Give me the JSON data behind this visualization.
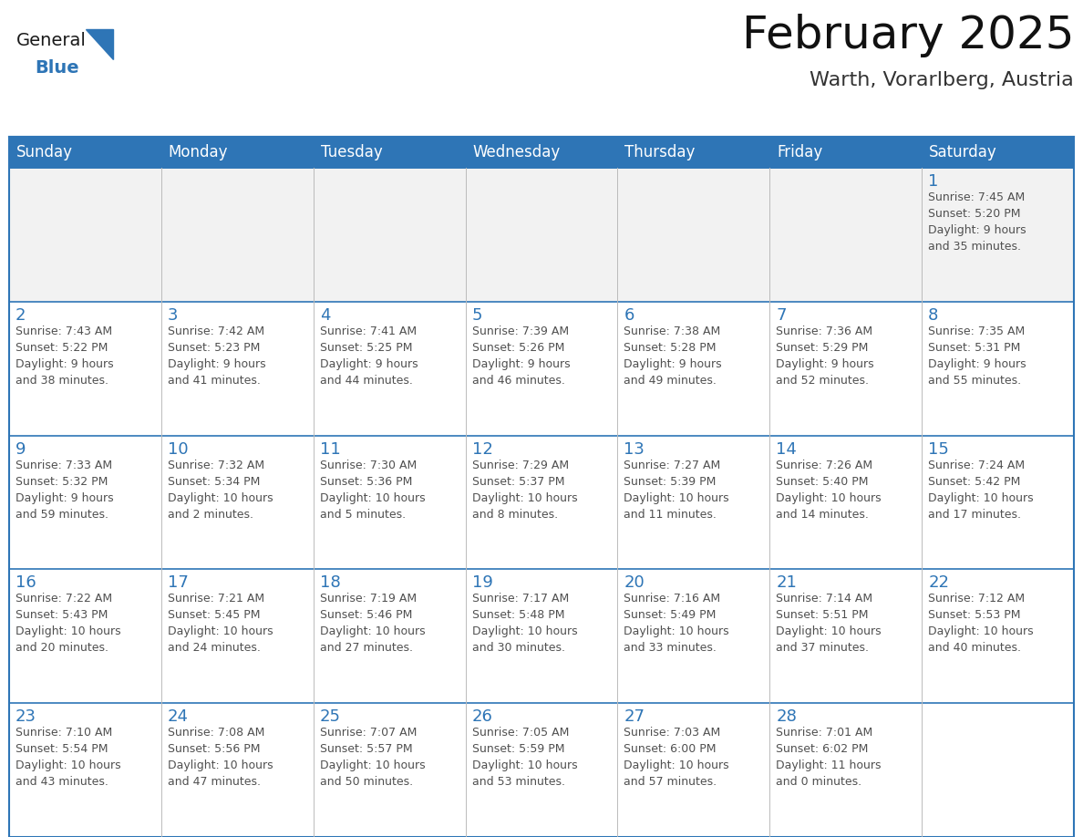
{
  "title": "February 2025",
  "subtitle": "Warth, Vorarlberg, Austria",
  "header_color": "#2E75B6",
  "header_text_color": "#FFFFFF",
  "cell_bg_white": "#FFFFFF",
  "cell_bg_gray": "#F2F2F2",
  "border_color": "#2E75B6",
  "day_number_color": "#2E75B6",
  "text_color": "#505050",
  "grid_line_color": "#BBBBBB",
  "days_of_week": [
    "Sunday",
    "Monday",
    "Tuesday",
    "Wednesday",
    "Thursday",
    "Friday",
    "Saturday"
  ],
  "weeks": [
    [
      {
        "day": null,
        "info": null
      },
      {
        "day": null,
        "info": null
      },
      {
        "day": null,
        "info": null
      },
      {
        "day": null,
        "info": null
      },
      {
        "day": null,
        "info": null
      },
      {
        "day": null,
        "info": null
      },
      {
        "day": "1",
        "info": "Sunrise: 7:45 AM\nSunset: 5:20 PM\nDaylight: 9 hours\nand 35 minutes."
      }
    ],
    [
      {
        "day": "2",
        "info": "Sunrise: 7:43 AM\nSunset: 5:22 PM\nDaylight: 9 hours\nand 38 minutes."
      },
      {
        "day": "3",
        "info": "Sunrise: 7:42 AM\nSunset: 5:23 PM\nDaylight: 9 hours\nand 41 minutes."
      },
      {
        "day": "4",
        "info": "Sunrise: 7:41 AM\nSunset: 5:25 PM\nDaylight: 9 hours\nand 44 minutes."
      },
      {
        "day": "5",
        "info": "Sunrise: 7:39 AM\nSunset: 5:26 PM\nDaylight: 9 hours\nand 46 minutes."
      },
      {
        "day": "6",
        "info": "Sunrise: 7:38 AM\nSunset: 5:28 PM\nDaylight: 9 hours\nand 49 minutes."
      },
      {
        "day": "7",
        "info": "Sunrise: 7:36 AM\nSunset: 5:29 PM\nDaylight: 9 hours\nand 52 minutes."
      },
      {
        "day": "8",
        "info": "Sunrise: 7:35 AM\nSunset: 5:31 PM\nDaylight: 9 hours\nand 55 minutes."
      }
    ],
    [
      {
        "day": "9",
        "info": "Sunrise: 7:33 AM\nSunset: 5:32 PM\nDaylight: 9 hours\nand 59 minutes."
      },
      {
        "day": "10",
        "info": "Sunrise: 7:32 AM\nSunset: 5:34 PM\nDaylight: 10 hours\nand 2 minutes."
      },
      {
        "day": "11",
        "info": "Sunrise: 7:30 AM\nSunset: 5:36 PM\nDaylight: 10 hours\nand 5 minutes."
      },
      {
        "day": "12",
        "info": "Sunrise: 7:29 AM\nSunset: 5:37 PM\nDaylight: 10 hours\nand 8 minutes."
      },
      {
        "day": "13",
        "info": "Sunrise: 7:27 AM\nSunset: 5:39 PM\nDaylight: 10 hours\nand 11 minutes."
      },
      {
        "day": "14",
        "info": "Sunrise: 7:26 AM\nSunset: 5:40 PM\nDaylight: 10 hours\nand 14 minutes."
      },
      {
        "day": "15",
        "info": "Sunrise: 7:24 AM\nSunset: 5:42 PM\nDaylight: 10 hours\nand 17 minutes."
      }
    ],
    [
      {
        "day": "16",
        "info": "Sunrise: 7:22 AM\nSunset: 5:43 PM\nDaylight: 10 hours\nand 20 minutes."
      },
      {
        "day": "17",
        "info": "Sunrise: 7:21 AM\nSunset: 5:45 PM\nDaylight: 10 hours\nand 24 minutes."
      },
      {
        "day": "18",
        "info": "Sunrise: 7:19 AM\nSunset: 5:46 PM\nDaylight: 10 hours\nand 27 minutes."
      },
      {
        "day": "19",
        "info": "Sunrise: 7:17 AM\nSunset: 5:48 PM\nDaylight: 10 hours\nand 30 minutes."
      },
      {
        "day": "20",
        "info": "Sunrise: 7:16 AM\nSunset: 5:49 PM\nDaylight: 10 hours\nand 33 minutes."
      },
      {
        "day": "21",
        "info": "Sunrise: 7:14 AM\nSunset: 5:51 PM\nDaylight: 10 hours\nand 37 minutes."
      },
      {
        "day": "22",
        "info": "Sunrise: 7:12 AM\nSunset: 5:53 PM\nDaylight: 10 hours\nand 40 minutes."
      }
    ],
    [
      {
        "day": "23",
        "info": "Sunrise: 7:10 AM\nSunset: 5:54 PM\nDaylight: 10 hours\nand 43 minutes."
      },
      {
        "day": "24",
        "info": "Sunrise: 7:08 AM\nSunset: 5:56 PM\nDaylight: 10 hours\nand 47 minutes."
      },
      {
        "day": "25",
        "info": "Sunrise: 7:07 AM\nSunset: 5:57 PM\nDaylight: 10 hours\nand 50 minutes."
      },
      {
        "day": "26",
        "info": "Sunrise: 7:05 AM\nSunset: 5:59 PM\nDaylight: 10 hours\nand 53 minutes."
      },
      {
        "day": "27",
        "info": "Sunrise: 7:03 AM\nSunset: 6:00 PM\nDaylight: 10 hours\nand 57 minutes."
      },
      {
        "day": "28",
        "info": "Sunrise: 7:01 AM\nSunset: 6:02 PM\nDaylight: 11 hours\nand 0 minutes."
      },
      {
        "day": null,
        "info": null
      }
    ]
  ],
  "logo_general_color": "#1A1A1A",
  "logo_blue_color": "#2E75B6",
  "logo_triangle_color": "#2E75B6",
  "title_fontsize": 36,
  "subtitle_fontsize": 16,
  "header_fontsize": 12,
  "day_number_fontsize": 13,
  "info_fontsize": 9
}
